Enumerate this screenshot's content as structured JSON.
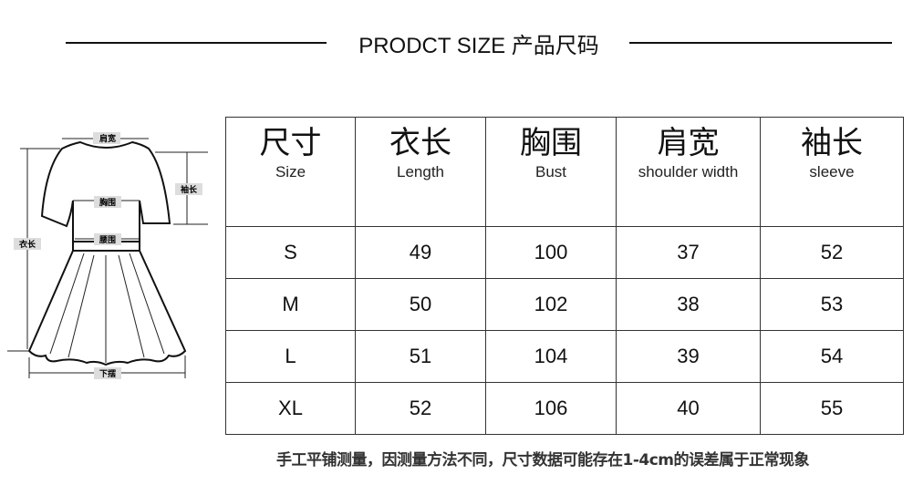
{
  "title": "PRODCT SIZE 产品尺码",
  "diagram": {
    "labels": {
      "shoulder": "肩宽",
      "sleeve": "袖长",
      "bust": "胸围",
      "waist": "腰围",
      "length": "衣长",
      "hem": "下摆"
    }
  },
  "table": {
    "headers": [
      {
        "zh": "尺寸",
        "en": "Size"
      },
      {
        "zh": "衣长",
        "en": "Length"
      },
      {
        "zh": "胸围",
        "en": "Bust"
      },
      {
        "zh": "肩宽",
        "en": "shoulder width"
      },
      {
        "zh": "袖长",
        "en": "sleeve"
      }
    ],
    "rows": [
      [
        "S",
        "49",
        "100",
        "37",
        "52"
      ],
      [
        "M",
        "50",
        "102",
        "38",
        "53"
      ],
      [
        "L",
        "51",
        "104",
        "39",
        "54"
      ],
      [
        "XL",
        "52",
        "106",
        "40",
        "55"
      ]
    ]
  },
  "note": "手工平铺测量，因测量方法不同，尺寸数据可能存在1-4cm的误差属于正常现象"
}
